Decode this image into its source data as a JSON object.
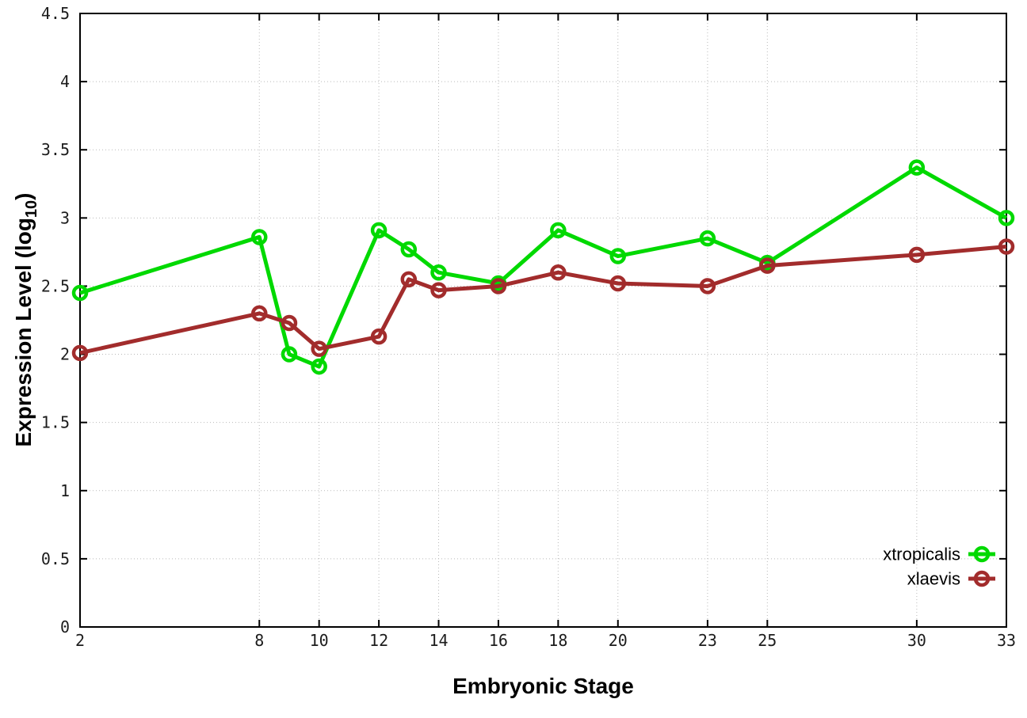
{
  "page": {
    "background": "#ffffff"
  },
  "axis_titles": {
    "x": "Embryonic Stage",
    "y_prefix": "Expression Level (log",
    "y_subscript": "10",
    "y_suffix": ")"
  },
  "colors": {
    "grid": "#b9b9b9",
    "axis": "#000000",
    "text": "#000000",
    "xtropicalis": "#00d900",
    "xlaevis": "#a22c2c"
  },
  "chart_data": {
    "type": "line",
    "title": "",
    "xlabel": "Embryonic Stage",
    "ylabel": "Expression Level (log10)",
    "xlim": [
      2,
      33
    ],
    "ylim": [
      0,
      4.5
    ],
    "grid": true,
    "legend_position": "bottom-right",
    "marker": "open-circle",
    "x": [
      2,
      8,
      9,
      10,
      12,
      13,
      14,
      16,
      18,
      20,
      23,
      25,
      30,
      33
    ],
    "xticks": {
      "values": [
        2,
        8,
        10,
        12,
        14,
        16,
        18,
        20,
        23,
        25,
        30,
        33
      ],
      "labels": [
        "2",
        "8",
        "10",
        "12",
        "14",
        "16",
        "18",
        "20",
        "23",
        "25",
        "30",
        "33"
      ]
    },
    "yticks": {
      "values": [
        0,
        0.5,
        1,
        1.5,
        2,
        2.5,
        3,
        3.5,
        4,
        4.5
      ],
      "labels": [
        "0",
        "0.5",
        "1",
        "1.5",
        "2",
        "2.5",
        "3",
        "3.5",
        "4",
        "4.5"
      ]
    },
    "series": [
      {
        "name": "xtropicalis",
        "color": "#00d900",
        "values": [
          2.45,
          2.86,
          2.0,
          1.91,
          2.91,
          2.77,
          2.6,
          2.52,
          2.91,
          2.72,
          2.85,
          2.67,
          3.37,
          3.0
        ]
      },
      {
        "name": "xlaevis",
        "color": "#a22c2c",
        "values": [
          2.01,
          2.3,
          2.23,
          2.04,
          2.13,
          2.55,
          2.47,
          2.5,
          2.6,
          2.52,
          2.5,
          2.65,
          2.73,
          2.79
        ]
      }
    ]
  }
}
